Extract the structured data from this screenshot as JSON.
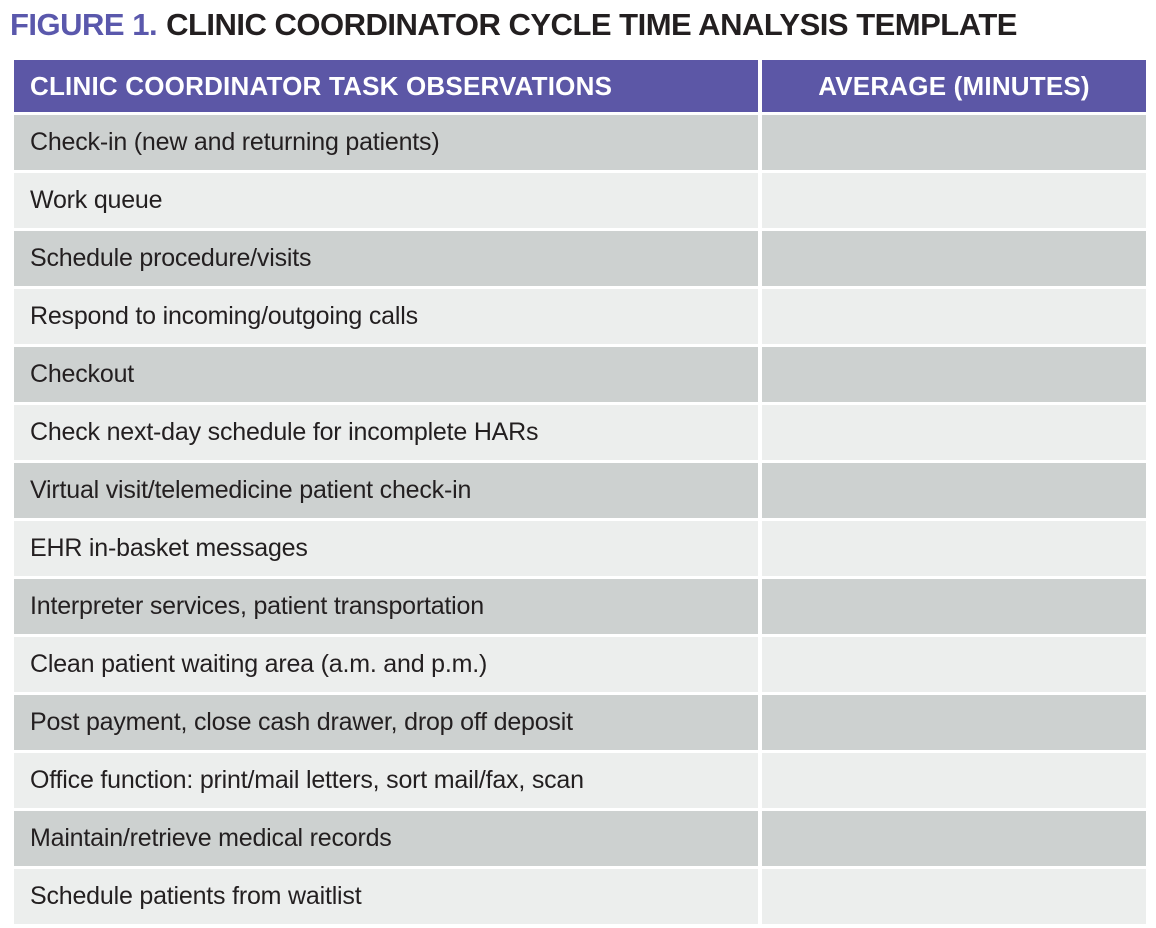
{
  "figure": {
    "label": "FIGURE 1.",
    "title": "CLINIC COORDINATOR CYCLE TIME ANALYSIS TEMPLATE"
  },
  "table": {
    "columns": [
      "CLINIC COORDINATOR TASK OBSERVATIONS",
      "AVERAGE (MINUTES)"
    ],
    "rows": [
      {
        "task": "Check-in (new and returning patients)",
        "average": ""
      },
      {
        "task": "Work queue",
        "average": ""
      },
      {
        "task": "Schedule procedure/visits",
        "average": ""
      },
      {
        "task": "Respond to incoming/outgoing calls",
        "average": ""
      },
      {
        "task": "Checkout",
        "average": ""
      },
      {
        "task": "Check next-day schedule for incomplete HARs",
        "average": ""
      },
      {
        "task": "Virtual visit/telemedicine patient check-in",
        "average": ""
      },
      {
        "task": "EHR in-basket messages",
        "average": ""
      },
      {
        "task": "Interpreter services, patient transportation",
        "average": ""
      },
      {
        "task": "Clean patient waiting area (a.m. and p.m.)",
        "average": ""
      },
      {
        "task": "Post payment, close cash drawer, drop off deposit",
        "average": ""
      },
      {
        "task": "Office function: print/mail letters, sort mail/fax, scan",
        "average": ""
      },
      {
        "task": "Maintain/retrieve medical records",
        "average": ""
      },
      {
        "task": "Schedule patients from waitlist",
        "average": ""
      }
    ]
  },
  "colors": {
    "header_bg": "#5C57A6",
    "figure_label": "#5A58AC",
    "row_dark": "#CDD1D0",
    "row_light": "#ECEEED",
    "text": "#231F20",
    "header_text": "#FFFFFF"
  }
}
